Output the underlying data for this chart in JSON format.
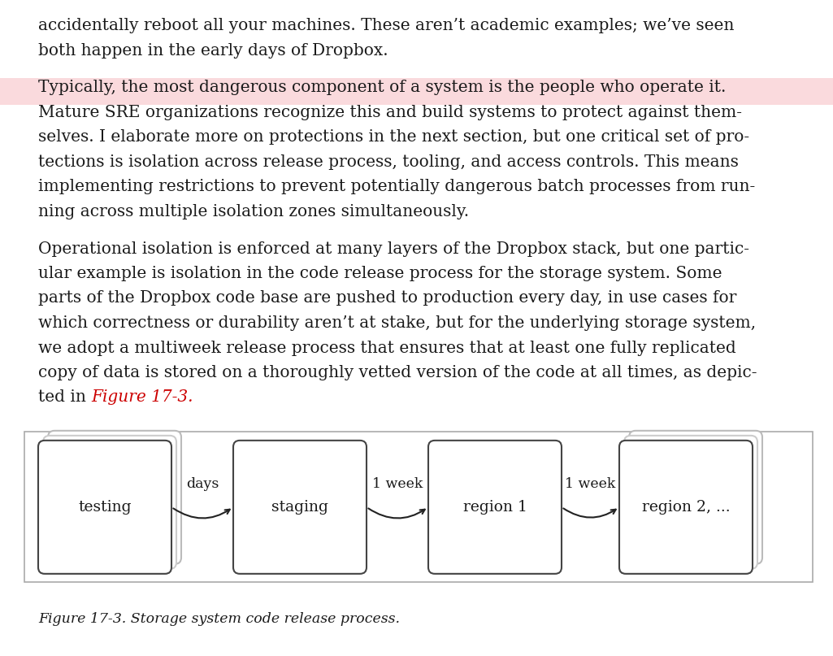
{
  "bg_color": "#ffffff",
  "text_color": "#1a1a1a",
  "highlight_color": "#fadadd",
  "red_color": "#cc0000",
  "paragraph1_lines": [
    "accidentally reboot all your machines. These aren’t academic examples; we’ve seen",
    "both happen in the early days of Dropbox."
  ],
  "paragraph2_lines": [
    "Typically, the most dangerous component of a system is the people who operate it.",
    "Mature SRE organizations recognize this and build systems to protect against them-",
    "selves. I elaborate more on protections in the next section, but one critical set of pro-",
    "tections is isolation across release process, tooling, and access controls. This means",
    "implementing restrictions to prevent potentially dangerous batch processes from run-",
    "ning across multiple isolation zones simultaneously."
  ],
  "paragraph3_lines": [
    "Operational isolation is enforced at many layers of the Dropbox stack, but one partic-",
    "ular example is isolation in the code release process for the storage system. Some",
    "parts of the Dropbox code base are pushed to production every day, in use cases for",
    "which correctness or durability aren’t at stake, but for the underlying storage system,",
    "we adopt a multiweek release process that ensures that at least one fully replicated",
    "copy of data is stored on a thoroughly vetted version of the code at all times, as depic-",
    "ted in "
  ],
  "figure_ref_text": "Figure 17-3.",
  "caption": "Figure 17-3. Storage system code release process.",
  "fig_width": 10.25,
  "fig_height": 8.07,
  "font_size_body": 14.5,
  "font_size_box_label": 13.5,
  "font_size_arrow_label": 12.5,
  "font_size_caption": 12.5
}
